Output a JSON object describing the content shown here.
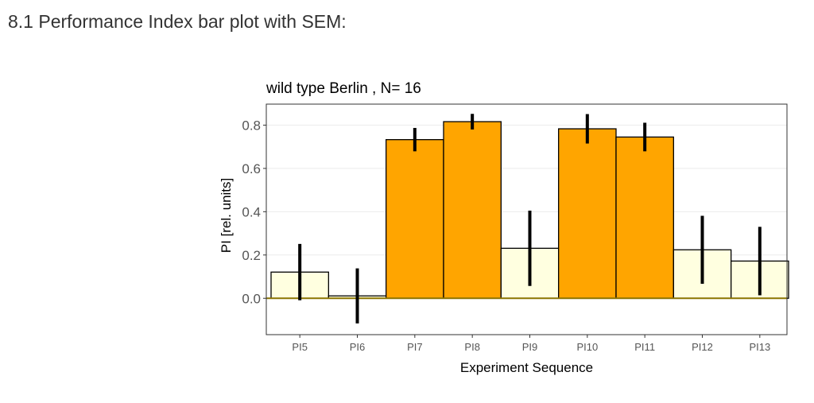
{
  "heading": "8.1 Performance Index bar plot with SEM:",
  "chart_data": {
    "type": "bar",
    "title": "wild type Berlin , N= 16",
    "xlabel": "Experiment Sequence",
    "ylabel": "PI [rel. units]",
    "categories": [
      "PI5",
      "PI6",
      "PI7",
      "PI8",
      "PI9",
      "PI10",
      "PI11",
      "PI12",
      "PI13"
    ],
    "values": [
      0.121,
      0.011,
      0.733,
      0.816,
      0.231,
      0.783,
      0.745,
      0.224,
      0.172
    ],
    "sem": [
      0.13,
      0.127,
      0.054,
      0.036,
      0.174,
      0.068,
      0.066,
      0.157,
      0.158
    ],
    "bar_colors": [
      "#FFFFE0",
      "#FFFFE0",
      "#FFA500",
      "#FFA500",
      "#FFFFE0",
      "#FFA500",
      "#FFA500",
      "#FFFFE0",
      "#FFFFE0"
    ],
    "yticks": [
      0.0,
      0.2,
      0.4,
      0.6,
      0.8
    ],
    "ytick_labels": [
      "0.0",
      "0.2",
      "0.4",
      "0.6",
      "0.8"
    ],
    "ylim": [
      -0.168,
      0.897
    ],
    "grid": true,
    "zero_line_color": "#8B7500"
  }
}
